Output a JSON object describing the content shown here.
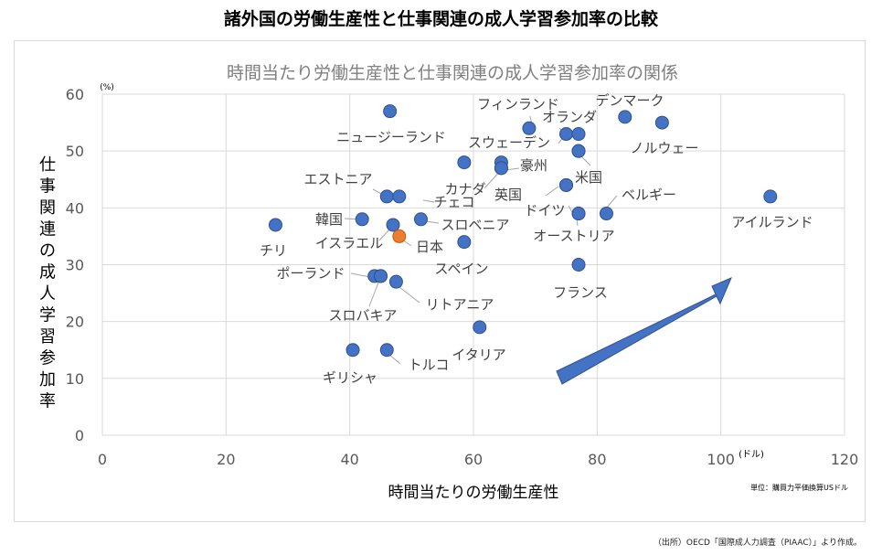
{
  "header": {
    "title": "諸外国の労働生産性と仕事関連の成人学習参加率の比較"
  },
  "footer": {
    "source": "（出所）OECD「国際成人力調査（PIAAC）」より作成。"
  },
  "colors": {
    "point": "#4472c4",
    "highlight": "#ed7d31",
    "arrow": "#4472c4",
    "grid": "#d9d9d9"
  },
  "chart_data": {
    "type": "scatter",
    "title": "時間当たり労働生産性と仕事関連の成人学習参加率の関係",
    "xlabel": "時間当たりの労働生産性",
    "ylabel": "仕事関連の成人学習参加率",
    "x_unit": "(ドル)",
    "y_unit": "(%)",
    "unit_note": "単位：購買力平価換算USドル",
    "xlim": [
      0,
      120
    ],
    "ylim": [
      0,
      60
    ],
    "xticks": [
      0,
      20,
      40,
      60,
      80,
      100,
      120
    ],
    "yticks": [
      0,
      10,
      20,
      30,
      40,
      50,
      60
    ],
    "grid": true,
    "points": [
      {
        "label": "フィンランド",
        "x": 69,
        "y": 54
      },
      {
        "label": "デンマーク",
        "x": 84.5,
        "y": 56
      },
      {
        "label": "",
        "x": 90.5,
        "y": 55
      },
      {
        "label": "ニュージーランド",
        "x": 46.5,
        "y": 57
      },
      {
        "label": "オランダ",
        "x": 75,
        "y": 53
      },
      {
        "label": "",
        "x": 77,
        "y": 53
      },
      {
        "label": "スウェーデン",
        "x": 77,
        "y": 50
      },
      {
        "label": "ノルウェー",
        "x": 77,
        "y": 50
      },
      {
        "label": "",
        "x": 58.5,
        "y": 48
      },
      {
        "label": "豪州",
        "x": 64.5,
        "y": 48
      },
      {
        "label": "",
        "x": 64.5,
        "y": 47
      },
      {
        "label": "エストニア",
        "x": 46,
        "y": 42
      },
      {
        "label": "チェコ",
        "x": 48,
        "y": 42
      },
      {
        "label": "カナダ",
        "x": 64.5,
        "y": 47
      },
      {
        "label": "米国",
        "x": 75,
        "y": 44
      },
      {
        "label": "英国",
        "x": 75,
        "y": 44
      },
      {
        "label": "ドイツ",
        "x": 77,
        "y": 39
      },
      {
        "label": "ベルギー",
        "x": 81.5,
        "y": 39
      },
      {
        "label": "アイルランド",
        "x": 108,
        "y": 42
      },
      {
        "label": "チリ",
        "x": 28,
        "y": 37
      },
      {
        "label": "韓国",
        "x": 42,
        "y": 38
      },
      {
        "label": "イスラエル",
        "x": 47,
        "y": 37
      },
      {
        "label": "スロベニア",
        "x": 51.5,
        "y": 38
      },
      {
        "label": "日本",
        "x": 48,
        "y": 35,
        "highlight": true
      },
      {
        "label": "オーストリア",
        "x": 77,
        "y": 39
      },
      {
        "label": "スペイン",
        "x": 58.5,
        "y": 34
      },
      {
        "label": "フランス",
        "x": 77,
        "y": 30
      },
      {
        "label": "ポーランド",
        "x": 44,
        "y": 28
      },
      {
        "label": "",
        "x": 45,
        "y": 28
      },
      {
        "label": "スロバキア",
        "x": 45,
        "y": 28
      },
      {
        "label": "リトアニア",
        "x": 47.5,
        "y": 27
      },
      {
        "label": "イタリア",
        "x": 61,
        "y": 19
      },
      {
        "label": "ギリシャ",
        "x": 40.5,
        "y": 15
      },
      {
        "label": "トルコ",
        "x": 46,
        "y": 15
      }
    ]
  }
}
